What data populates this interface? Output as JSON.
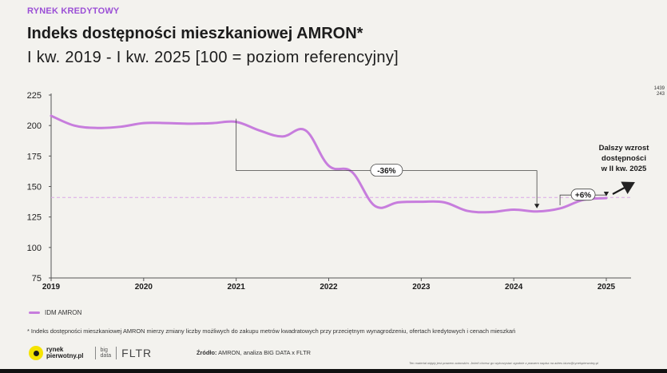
{
  "header": {
    "kicker": "RYNEK KREDYTOWY",
    "title": "Indeks dostępności mieszkaniowej AMRON*",
    "subtitle": "I kw. 2019 - I kw. 2025 [100 = poziom referencyjny]"
  },
  "corner_text": [
    "1439",
    "243"
  ],
  "chart_data": {
    "type": "line",
    "title": "Indeks dostępności mieszkaniowej AMRON*",
    "subtitle": "I kw. 2019 - I kw. 2025 [100 = poziom referencyjny]",
    "xlabel": "",
    "ylabel": "",
    "ylim": [
      75,
      225
    ],
    "xlim": [
      2019,
      2025.25
    ],
    "yticks": [
      75,
      100,
      125,
      150,
      175,
      200,
      225
    ],
    "xticks": [
      "2019",
      "2020",
      "2021",
      "2022",
      "2023",
      "2024",
      "2025"
    ],
    "reference_line": 141,
    "grid": false,
    "legend": "bottom-left",
    "series": [
      {
        "name": "IDM AMRON",
        "color": "#c77ddd",
        "x": [
          2019.0,
          2019.25,
          2019.5,
          2019.75,
          2020.0,
          2020.25,
          2020.5,
          2020.75,
          2021.0,
          2021.25,
          2021.5,
          2021.75,
          2022.0,
          2022.25,
          2022.5,
          2022.75,
          2023.0,
          2023.25,
          2023.5,
          2023.75,
          2024.0,
          2024.25,
          2024.5,
          2024.75,
          2025.0
        ],
        "values": [
          208,
          200,
          198,
          199,
          202,
          202,
          201.5,
          202,
          203,
          196,
          191,
          196,
          167,
          162,
          134,
          137,
          137.5,
          137,
          130,
          129,
          131,
          129.5,
          132,
          139,
          140.5
        ]
      }
    ],
    "annotations": [
      {
        "text": "-36%",
        "from_x": 2021.0,
        "to_x": 2024.25,
        "level": 163
      },
      {
        "text": "+6%",
        "from_x": 2024.5,
        "to_x": 2025.0,
        "level": 143
      },
      {
        "text_lines": [
          "Dalszy wzrost",
          "dostępności",
          "w II kw. 2025"
        ]
      }
    ]
  },
  "footnote": "* Indeks dostępności mieszkaniowej AMRON mierzy zmiany liczby możliwych do zakupu metrów kwadratowych przy przeciętnym wynagrodzeniu, ofertach kredytowych i cenach mieszkań",
  "logos": {
    "rp_line1": "rynek",
    "rp_line2": "pierwotny.pl",
    "bd_line1": "big",
    "bd_line2": "data",
    "fltr": "FLTR"
  },
  "source": {
    "label": "Źródło:",
    "text": "AMRON, analiza BIG DATA x FLTR"
  },
  "disclaimer": "Ten materiał objęty jest prawem autorskim. Jeżeli chcesz go wykorzystać zgodnie z prawem napisz na adres biuro@rynekpierwotny.pl"
}
